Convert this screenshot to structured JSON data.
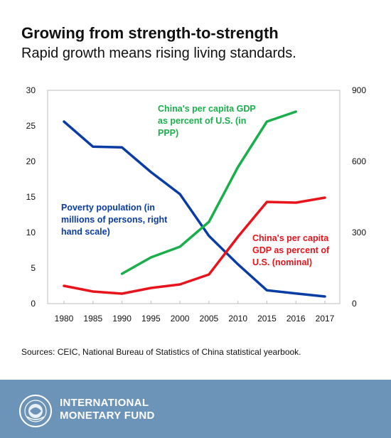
{
  "header": {
    "title": "Growing from strength-to-strength",
    "subtitle": "Rapid growth means rising living standards."
  },
  "chart_data": {
    "type": "line",
    "categories": [
      "1980",
      "1985",
      "1990",
      "1995",
      "2000",
      "2005",
      "2010",
      "2015",
      "2016",
      "2017"
    ],
    "left_axis": {
      "ticks": [
        "0",
        "5",
        "10",
        "15",
        "20",
        "25",
        "30"
      ],
      "ylim": [
        0,
        30
      ]
    },
    "right_axis": {
      "ticks": [
        "0",
        "300",
        "600",
        "900"
      ],
      "ylim": [
        0,
        900
      ]
    },
    "grid": false,
    "series": [
      {
        "name": "Poverty population (in millions of persons, right hand scale)",
        "label_lines": [
          "Poverty population (in",
          "millions of persons, right",
          "hand scale)"
        ],
        "axis": "right",
        "color": "#0a3ca6",
        "values": [
          768,
          662,
          659,
          555,
          462,
          286,
          166,
          56,
          43,
          30
        ]
      },
      {
        "name": "China's per capita GDP as percent of U.S. (in PPP)",
        "label_lines": [
          "China's per capita GDP",
          "as percent of U.S. (in",
          "PPP)"
        ],
        "axis": "left",
        "color": "#1aaf4b",
        "values": [
          null,
          null,
          4.2,
          6.5,
          8.0,
          11.5,
          19.2,
          25.6,
          27.0,
          null
        ]
      },
      {
        "name": "China's per capita GDP as percent of U.S. (nominal)",
        "label_lines": [
          "China's per capita",
          "GDP as percent of",
          "U.S. (nominal)"
        ],
        "axis": "left",
        "color": "#e8141b",
        "values": [
          2.5,
          1.7,
          1.4,
          2.2,
          2.7,
          4.1,
          9.4,
          14.3,
          14.2,
          14.9
        ]
      }
    ]
  },
  "source": "Sources: CEIC, National Bureau of Statistics of China statistical yearbook.",
  "footer": {
    "org_line1": "INTERNATIONAL",
    "org_line2": "MONETARY FUND",
    "background": "#6c93b8"
  }
}
